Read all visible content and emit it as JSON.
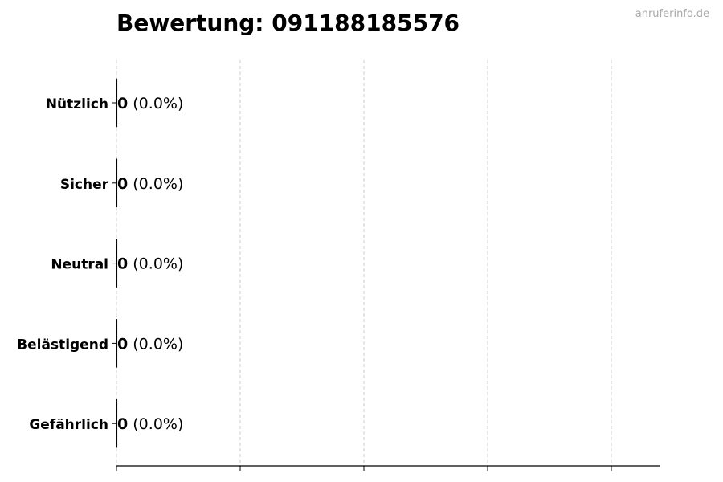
{
  "title": "Bewertung: 091188185576",
  "watermark": "anruferinfo.de",
  "chart_data": {
    "type": "bar",
    "orientation": "horizontal",
    "title": "Bewertung: 091188185576",
    "categories": [
      "Nützlich",
      "Sicher",
      "Neutral",
      "Belästigend",
      "Gefährlich"
    ],
    "values": [
      0,
      0,
      0,
      0,
      0
    ],
    "data_labels": [
      {
        "count": "0",
        "percent": "(0.0%)"
      },
      {
        "count": "0",
        "percent": "(0.0%)"
      },
      {
        "count": "0",
        "percent": "(0.0%)"
      },
      {
        "count": "0",
        "percent": "(0.0%)"
      },
      {
        "count": "0",
        "percent": "(0.0%)"
      }
    ],
    "xlabel": "",
    "ylabel": "",
    "x_tick_labels_shown": false,
    "grid": "x dashed",
    "colors": {
      "bar_edge": "#000000",
      "grid": "#cccccc",
      "watermark": "#aaaaaa"
    }
  }
}
